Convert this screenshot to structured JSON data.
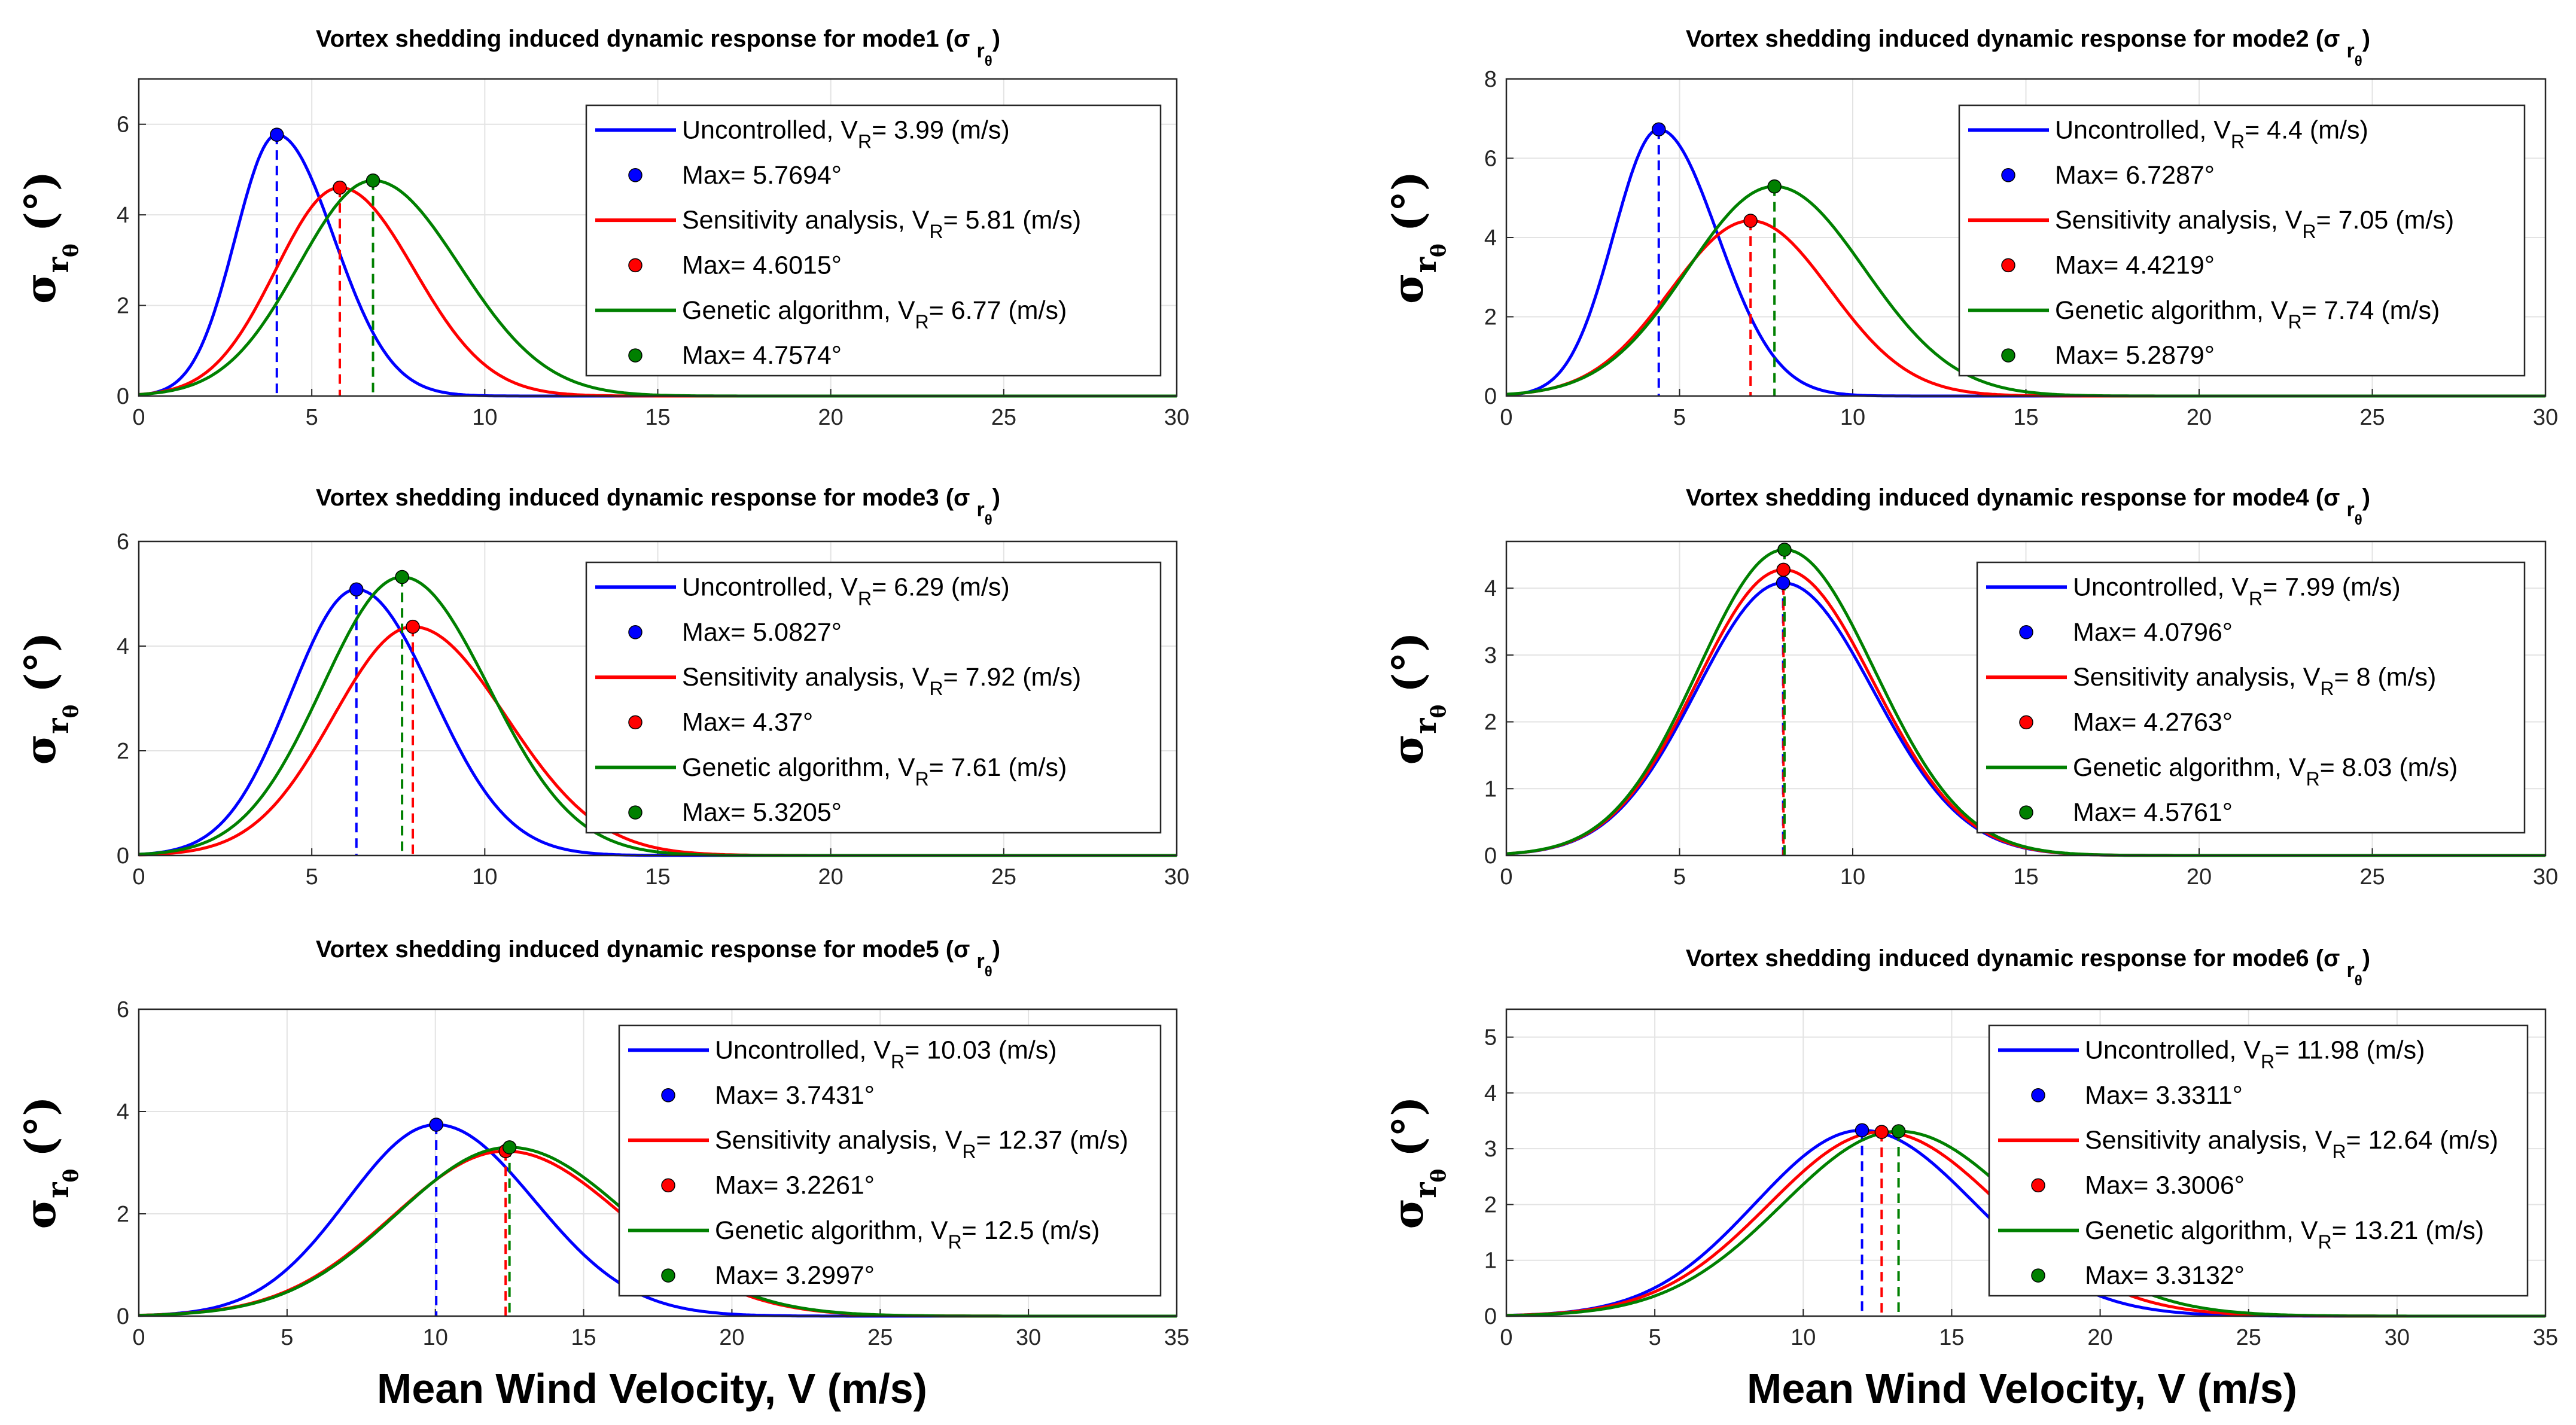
{
  "colors": {
    "uncontrolled": "#0000ff",
    "sensitivity": "#ff0000",
    "genetic": "#008000"
  },
  "xlabel": "Mean Wind Velocity, V (m/s)",
  "chart_data": [
    {
      "type": "line",
      "title": "Vortex shedding induced dynamic response for mode1 (σ",
      "ylabel": "σ",
      "xlim": [
        0,
        30
      ],
      "ylim": [
        0,
        7
      ],
      "xticks": [
        "0",
        "5",
        "10",
        "15",
        "20",
        "25",
        "30"
      ],
      "yticks": [
        "0",
        "2",
        "4",
        "6"
      ],
      "series": [
        {
          "name": "Uncontrolled",
          "label": "Uncontrolled, V",
          "vr": "= 3.99 (m/s)",
          "max_label": "Max= 5.7694°",
          "peak_x": 3.99,
          "peak_y": 5.7694,
          "sl": 1.2,
          "sr": 1.65
        },
        {
          "name": "Sensitivity analysis",
          "label": "Sensitivity analysis, V",
          "vr": "= 5.81 (m/s)",
          "max_label": "Max= 4.6015°",
          "peak_x": 5.81,
          "peak_y": 4.6015,
          "sl": 1.85,
          "sr": 2.15
        },
        {
          "name": "Genetic algorithm",
          "label": "Genetic algorithm, V",
          "vr": "= 6.77 (m/s)",
          "max_label": "Max= 4.7574°",
          "peak_x": 6.77,
          "peak_y": 4.7574,
          "sl": 2.15,
          "sr": 2.5
        }
      ]
    },
    {
      "type": "line",
      "title": "Vortex shedding induced dynamic response for mode2 (σ",
      "ylabel": "σ",
      "xlim": [
        0,
        30
      ],
      "ylim": [
        0,
        8
      ],
      "xticks": [
        "0",
        "5",
        "10",
        "15",
        "20",
        "25",
        "30"
      ],
      "yticks": [
        "0",
        "2",
        "4",
        "6",
        "8"
      ],
      "series": [
        {
          "name": "Uncontrolled",
          "label": "Uncontrolled, V",
          "vr": "= 4.4 (m/s)",
          "max_label": "Max= 6.7287°",
          "peak_x": 4.4,
          "peak_y": 6.7287,
          "sl": 1.3,
          "sr": 1.7
        },
        {
          "name": "Sensitivity analysis",
          "label": "Sensitivity analysis, V",
          "vr": "= 7.05 (m/s)",
          "max_label": "Max= 4.4219°",
          "peak_x": 7.05,
          "peak_y": 4.4219,
          "sl": 2.3,
          "sr": 2.3
        },
        {
          "name": "Genetic algorithm",
          "label": "Genetic algorithm, V",
          "vr": "= 7.74 (m/s)",
          "max_label": "Max= 5.2879°",
          "peak_x": 7.74,
          "peak_y": 5.2879,
          "sl": 2.5,
          "sr": 2.6
        }
      ]
    },
    {
      "type": "line",
      "title": "Vortex shedding induced dynamic response for mode3 (σ",
      "ylabel": "σ",
      "xlim": [
        0,
        30
      ],
      "ylim": [
        0,
        6
      ],
      "xticks": [
        "0",
        "5",
        "10",
        "15",
        "20",
        "25",
        "30"
      ],
      "yticks": [
        "0",
        "2",
        "4",
        "6"
      ],
      "series": [
        {
          "name": "Uncontrolled",
          "label": "Uncontrolled, V",
          "vr": "= 6.29 (m/s)",
          "max_label": "Max= 5.0827°",
          "peak_x": 6.29,
          "peak_y": 5.0827,
          "sl": 1.9,
          "sr": 2.2
        },
        {
          "name": "Sensitivity analysis",
          "label": "Sensitivity analysis, V",
          "vr": "= 7.92 (m/s)",
          "max_label": "Max= 4.37°",
          "peak_x": 7.92,
          "peak_y": 4.37,
          "sl": 2.3,
          "sr": 2.7
        },
        {
          "name": "Genetic algorithm",
          "label": "Genetic algorithm, V",
          "vr": "= 7.61 (m/s)",
          "max_label": "Max= 5.3205°",
          "peak_x": 7.61,
          "peak_y": 5.3205,
          "sl": 2.3,
          "sr": 2.5
        }
      ]
    },
    {
      "type": "line",
      "title": "Vortex shedding induced dynamic response for mode4 (σ",
      "ylabel": "σ",
      "xlim": [
        0,
        30
      ],
      "ylim": [
        0,
        4.7
      ],
      "xticks": [
        "0",
        "5",
        "10",
        "15",
        "20",
        "25",
        "30"
      ],
      "yticks": [
        "0",
        "1",
        "2",
        "3",
        "4"
      ],
      "series": [
        {
          "name": "Uncontrolled",
          "label": "Uncontrolled, V",
          "vr": "= 7.99 (m/s)",
          "max_label": "Max= 4.0796°",
          "peak_x": 7.99,
          "peak_y": 4.0796,
          "sl": 2.5,
          "sr": 2.6
        },
        {
          "name": "Sensitivity analysis",
          "label": "Sensitivity analysis, V",
          "vr": "= 8 (m/s)",
          "max_label": "Max= 4.2763°",
          "peak_x": 8.0,
          "peak_y": 4.2763,
          "sl": 2.5,
          "sr": 2.6
        },
        {
          "name": "Genetic algorithm",
          "label": "Genetic algorithm, V",
          "vr": "= 8.03 (m/s)",
          "max_label": "Max= 4.5761°",
          "peak_x": 8.03,
          "peak_y": 4.5761,
          "sl": 2.5,
          "sr": 2.6
        }
      ]
    },
    {
      "type": "line",
      "title": "Vortex shedding induced dynamic response for mode5 (σ",
      "ylabel": "σ",
      "xlim": [
        0,
        35
      ],
      "ylim": [
        0,
        6
      ],
      "xticks": [
        "0",
        "5",
        "10",
        "15",
        "20",
        "25",
        "30",
        "35"
      ],
      "yticks": [
        "0",
        "2",
        "4",
        "6"
      ],
      "series": [
        {
          "name": "Uncontrolled",
          "label": "Uncontrolled, V",
          "vr": "= 10.03 (m/s)",
          "max_label": "Max= 3.7431°",
          "peak_x": 10.03,
          "peak_y": 3.7431,
          "sl": 3.0,
          "sr": 3.3
        },
        {
          "name": "Sensitivity analysis",
          "label": "Sensitivity analysis, V",
          "vr": "= 12.37 (m/s)",
          "max_label": "Max= 3.2261°",
          "peak_x": 12.37,
          "peak_y": 3.2261,
          "sl": 3.8,
          "sr": 4.0
        },
        {
          "name": "Genetic algorithm",
          "label": "Genetic algorithm, V",
          "vr": "= 12.5 (m/s)",
          "max_label": "Max= 3.2997°",
          "peak_x": 12.5,
          "peak_y": 3.2997,
          "sl": 3.8,
          "sr": 4.0
        }
      ]
    },
    {
      "type": "line",
      "title": "Vortex shedding induced dynamic response for mode6 (σ",
      "ylabel": "σ",
      "xlim": [
        0,
        35
      ],
      "ylim": [
        0,
        5.5
      ],
      "xticks": [
        "0",
        "5",
        "10",
        "15",
        "20",
        "25",
        "30",
        "35"
      ],
      "yticks": [
        "0",
        "1",
        "2",
        "3",
        "4",
        "5"
      ],
      "series": [
        {
          "name": "Uncontrolled",
          "label": "Uncontrolled, V",
          "vr": "= 11.98 (m/s)",
          "max_label": "Max= 3.3311°",
          "peak_x": 11.98,
          "peak_y": 3.3311,
          "sl": 3.6,
          "sr": 3.8
        },
        {
          "name": "Sensitivity analysis",
          "label": "Sensitivity analysis, V",
          "vr": "= 12.64 (m/s)",
          "max_label": "Max= 3.3006°",
          "peak_x": 12.64,
          "peak_y": 3.3006,
          "sl": 3.8,
          "sr": 4.0
        },
        {
          "name": "Genetic algorithm",
          "label": "Genetic algorithm, V",
          "vr": "= 13.21 (m/s)",
          "max_label": "Max= 3.3132°",
          "peak_x": 13.21,
          "peak_y": 3.3132,
          "sl": 3.9,
          "sr": 4.1
        }
      ]
    }
  ]
}
